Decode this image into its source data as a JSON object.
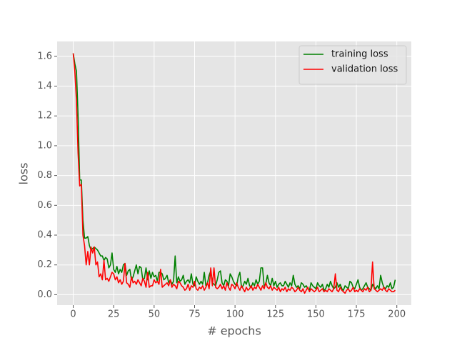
{
  "chart_data": {
    "type": "line",
    "x_label": "# epochs",
    "y_label": "loss",
    "x": [
      0,
      1,
      2,
      3,
      4,
      5,
      6,
      7,
      8,
      9,
      10,
      11,
      12,
      13,
      14,
      15,
      16,
      17,
      18,
      19,
      20,
      21,
      22,
      23,
      24,
      25,
      26,
      27,
      28,
      29,
      30,
      31,
      32,
      33,
      34,
      35,
      36,
      37,
      38,
      39,
      40,
      41,
      42,
      43,
      44,
      45,
      46,
      47,
      48,
      49,
      50,
      51,
      52,
      53,
      54,
      55,
      56,
      57,
      58,
      59,
      60,
      61,
      62,
      63,
      64,
      65,
      66,
      67,
      68,
      69,
      70,
      71,
      72,
      73,
      74,
      75,
      76,
      77,
      78,
      79,
      80,
      81,
      82,
      83,
      84,
      85,
      86,
      87,
      88,
      89,
      90,
      91,
      92,
      93,
      94,
      95,
      96,
      97,
      98,
      99,
      100,
      101,
      102,
      103,
      104,
      105,
      106,
      107,
      108,
      109,
      110,
      111,
      112,
      113,
      114,
      115,
      116,
      117,
      118,
      119,
      120,
      121,
      122,
      123,
      124,
      125,
      126,
      127,
      128,
      129,
      130,
      131,
      132,
      133,
      134,
      135,
      136,
      137,
      138,
      139,
      140,
      141,
      142,
      143,
      144,
      145,
      146,
      147,
      148,
      149,
      150,
      151,
      152,
      153,
      154,
      155,
      156,
      157,
      158,
      159,
      160,
      161,
      162,
      163,
      164,
      165,
      166,
      167,
      168,
      169,
      170,
      171,
      172,
      173,
      174,
      175,
      176,
      177,
      178,
      179,
      180,
      181,
      182,
      183,
      184,
      185,
      186,
      187,
      188,
      189,
      190,
      191,
      192,
      193,
      194,
      195,
      196,
      197,
      198,
      199
    ],
    "series": [
      {
        "name": "training loss",
        "color": "#008000",
        "values": [
          1.62,
          1.55,
          1.5,
          1.2,
          0.77,
          0.77,
          0.5,
          0.38,
          0.38,
          0.39,
          0.33,
          0.3,
          0.31,
          0.32,
          0.31,
          0.3,
          0.28,
          0.26,
          0.26,
          0.23,
          0.25,
          0.24,
          0.18,
          0.2,
          0.28,
          0.17,
          0.15,
          0.19,
          0.14,
          0.17,
          0.15,
          0.2,
          0.21,
          0.13,
          0.16,
          0.17,
          0.1,
          0.12,
          0.16,
          0.2,
          0.14,
          0.19,
          0.18,
          0.1,
          0.11,
          0.18,
          0.1,
          0.16,
          0.11,
          0.15,
          0.12,
          0.13,
          0.09,
          0.15,
          0.15,
          0.14,
          0.1,
          0.11,
          0.13,
          0.08,
          0.1,
          0.07,
          0.09,
          0.26,
          0.08,
          0.12,
          0.09,
          0.1,
          0.13,
          0.07,
          0.09,
          0.1,
          0.08,
          0.14,
          0.07,
          0.06,
          0.12,
          0.09,
          0.07,
          0.09,
          0.07,
          0.15,
          0.06,
          0.08,
          0.13,
          0.16,
          0.08,
          0.07,
          0.06,
          0.1,
          0.15,
          0.16,
          0.08,
          0.06,
          0.1,
          0.09,
          0.06,
          0.14,
          0.12,
          0.09,
          0.07,
          0.06,
          0.12,
          0.15,
          0.05,
          0.06,
          0.09,
          0.07,
          0.11,
          0.06,
          0.05,
          0.08,
          0.06,
          0.1,
          0.07,
          0.09,
          0.18,
          0.18,
          0.06,
          0.07,
          0.13,
          0.08,
          0.06,
          0.11,
          0.06,
          0.09,
          0.05,
          0.07,
          0.08,
          0.06,
          0.06,
          0.09,
          0.07,
          0.05,
          0.08,
          0.06,
          0.13,
          0.07,
          0.05,
          0.06,
          0.04,
          0.08,
          0.07,
          0.05,
          0.06,
          0.04,
          0.03,
          0.08,
          0.06,
          0.05,
          0.04,
          0.08,
          0.06,
          0.05,
          0.07,
          0.03,
          0.04,
          0.07,
          0.05,
          0.09,
          0.06,
          0.04,
          0.05,
          0.08,
          0.05,
          0.07,
          0.04,
          0.03,
          0.06,
          0.05,
          0.04,
          0.09,
          0.08,
          0.05,
          0.04,
          0.07,
          0.1,
          0.05,
          0.03,
          0.04,
          0.06,
          0.08,
          0.05,
          0.04,
          0.03,
          0.07,
          0.05,
          0.04,
          0.06,
          0.04,
          0.13,
          0.08,
          0.05,
          0.04,
          0.06,
          0.05,
          0.08,
          0.04,
          0.05,
          0.1
        ]
      },
      {
        "name": "validation loss",
        "color": "#ff0000",
        "values": [
          1.62,
          1.5,
          1.3,
          0.95,
          0.73,
          0.74,
          0.4,
          0.33,
          0.2,
          0.29,
          0.2,
          0.32,
          0.28,
          0.32,
          0.2,
          0.22,
          0.12,
          0.14,
          0.1,
          0.23,
          0.1,
          0.11,
          0.09,
          0.12,
          0.15,
          0.14,
          0.1,
          0.12,
          0.08,
          0.1,
          0.07,
          0.09,
          0.21,
          0.08,
          0.07,
          0.05,
          0.12,
          0.08,
          0.09,
          0.07,
          0.1,
          0.08,
          0.06,
          0.11,
          0.09,
          0.05,
          0.15,
          0.05,
          0.06,
          0.06,
          0.1,
          0.08,
          0.09,
          0.07,
          0.17,
          0.05,
          0.06,
          0.07,
          0.08,
          0.06,
          0.1,
          0.05,
          0.07,
          0.06,
          0.04,
          0.09,
          0.08,
          0.06,
          0.05,
          0.03,
          0.04,
          0.07,
          0.03,
          0.06,
          0.05,
          0.09,
          0.04,
          0.03,
          0.05,
          0.04,
          0.06,
          0.03,
          0.05,
          0.08,
          0.04,
          0.18,
          0.06,
          0.18,
          0.05,
          0.04,
          0.05,
          0.07,
          0.04,
          0.06,
          0.03,
          0.08,
          0.05,
          0.03,
          0.07,
          0.06,
          0.04,
          0.08,
          0.05,
          0.03,
          0.06,
          0.04,
          0.02,
          0.05,
          0.03,
          0.04,
          0.06,
          0.03,
          0.05,
          0.04,
          0.07,
          0.05,
          0.03,
          0.06,
          0.04,
          0.08,
          0.05,
          0.04,
          0.06,
          0.03,
          0.05,
          0.04,
          0.03,
          0.05,
          0.02,
          0.04,
          0.03,
          0.05,
          0.02,
          0.04,
          0.03,
          0.05,
          0.04,
          0.02,
          0.03,
          0.05,
          0.03,
          0.02,
          0.04,
          0.01,
          0.03,
          0.05,
          0.02,
          0.04,
          0.03,
          0.02,
          0.03,
          0.05,
          0.02,
          0.03,
          0.04,
          0.02,
          0.03,
          0.02,
          0.04,
          0.03,
          0.02,
          0.04,
          0.14,
          0.03,
          0.02,
          0.05,
          0.03,
          0.02,
          0.01,
          0.03,
          0.04,
          0.02,
          0.03,
          0.05,
          0.02,
          0.03,
          0.02,
          0.04,
          0.03,
          0.02,
          0.04,
          0.03,
          0.05,
          0.02,
          0.03,
          0.22,
          0.04,
          0.03,
          0.02,
          0.03,
          0.04,
          0.03,
          0.05,
          0.03,
          0.02,
          0.04,
          0.03,
          0.02,
          0.02,
          0.03
        ]
      }
    ],
    "xlim": [
      -9.95,
      208.95
    ],
    "xticks": [
      0,
      25,
      50,
      75,
      100,
      125,
      150,
      175,
      200
    ],
    "ylim": [
      -0.07,
      1.7
    ],
    "yticks": [
      {
        "value": 0,
        "label": "0.0"
      },
      0.2,
      0.4,
      0.6,
      0.8,
      {
        "value": 1,
        "label": "1.0"
      },
      1.2,
      1.4,
      1.6
    ],
    "grid": true,
    "legend": "upper right"
  }
}
